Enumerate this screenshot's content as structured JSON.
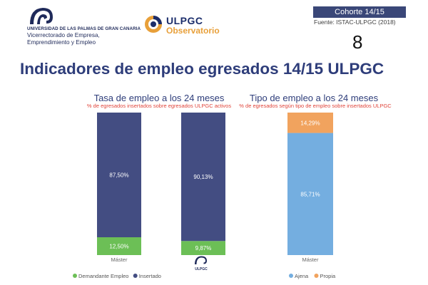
{
  "header": {
    "university_name": "UNIVERSIDAD DE LAS PALMAS DE GRAN CANARIA",
    "vicerrectorado": "Vicerrectorado de Empresa, Emprendimiento y Empleo",
    "observatorio_line1": "ULPGC",
    "observatorio_line2": "Observatorio",
    "cohorte": "Cohorte 14/15",
    "fuente": "Fuente: ISTAC-ULPGC (2018)",
    "page_number": "8",
    "footer_logo_text": "ULPGC"
  },
  "main_title": "Indicadores de empleo egresados 14/15 ULPGC",
  "colors": {
    "insertado": "#434d82",
    "demandante": "#6cbf56",
    "ajena": "#74aee0",
    "propia": "#f1a35e",
    "title_blue": "#2e3d7a",
    "subtitle_red": "#e0443a"
  },
  "chart_data": [
    {
      "type": "bar",
      "stacked": true,
      "percent": true,
      "title": "Tasa de empleo a los 24 meses",
      "subtitle": "% de egresados insertados sobre egresados ULPGC activos",
      "categories": [
        "Máster",
        ""
      ],
      "series": [
        {
          "name": "Demandante Empleo",
          "values": [
            12.5,
            9.87
          ],
          "labels": [
            "12,50%",
            "9,87%"
          ],
          "color": "#6cbf56"
        },
        {
          "name": "Insertado",
          "values": [
            87.5,
            90.13
          ],
          "labels": [
            "87,50%",
            "90,13%"
          ],
          "color": "#434d82"
        }
      ],
      "ylim": [
        0,
        100
      ],
      "legend": "bottom"
    },
    {
      "type": "bar",
      "stacked": true,
      "percent": true,
      "title": "Tipo de empleo a los 24 meses",
      "subtitle": "% de egresados según tipo de empleo sobre insertados ULPGC",
      "categories": [
        "Máster"
      ],
      "series": [
        {
          "name": "Ajena",
          "values": [
            85.71
          ],
          "labels": [
            "85,71%"
          ],
          "color": "#74aee0"
        },
        {
          "name": "Propia",
          "values": [
            14.29
          ],
          "labels": [
            "14,29%"
          ],
          "color": "#f1a35e"
        }
      ],
      "ylim": [
        0,
        100
      ],
      "legend": "bottom"
    }
  ]
}
